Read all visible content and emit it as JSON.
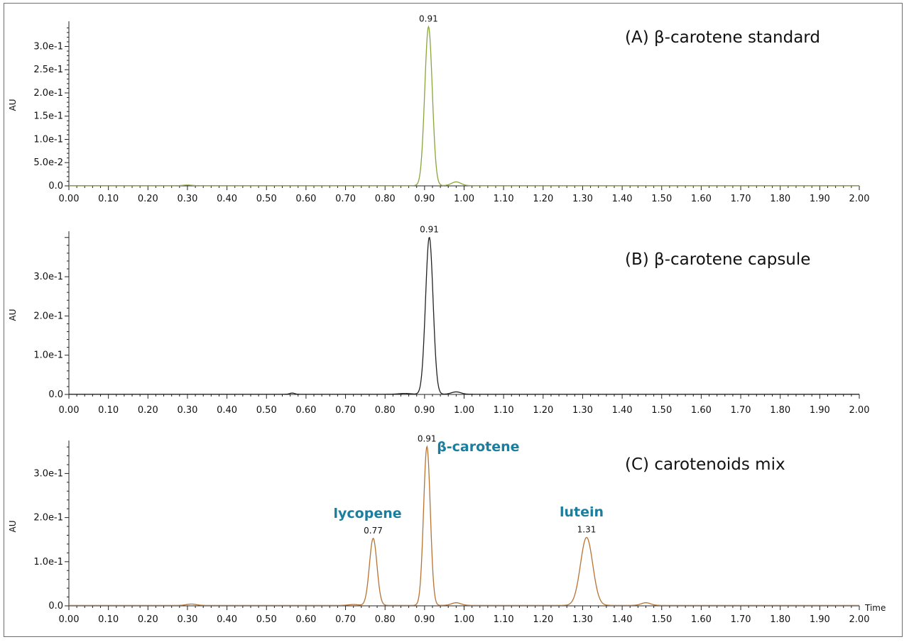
{
  "chart_data": [
    {
      "type": "line",
      "title": "(A) β-carotene standard",
      "ylabel": "AU",
      "xlabel": "",
      "xlim": [
        0.0,
        2.0
      ],
      "ylim": [
        0,
        0.345
      ],
      "x_ticks": [
        "0.00",
        "0.10",
        "0.20",
        "0.30",
        "0.40",
        "0.50",
        "0.60",
        "0.70",
        "0.80",
        "0.90",
        "1.00",
        "1.10",
        "1.20",
        "1.30",
        "1.40",
        "1.50",
        "1.60",
        "1.70",
        "1.80",
        "1.90",
        "2.00"
      ],
      "y_ticks": [
        {
          "value": 0.0,
          "label": "0.0"
        },
        {
          "value": 0.05,
          "label": "5.0e-2"
        },
        {
          "value": 0.1,
          "label": "1.0e-1"
        },
        {
          "value": 0.15,
          "label": "1.5e-1"
        },
        {
          "value": 0.2,
          "label": "2.0e-1"
        },
        {
          "value": 0.25,
          "label": "2.5e-1"
        },
        {
          "value": 0.3,
          "label": "3.0e-1"
        }
      ],
      "line_color": "#8aa53a",
      "baseline": 0.0005,
      "peaks": [
        {
          "rt": 0.91,
          "height": 0.342,
          "width": 0.0095,
          "label": "0.91"
        },
        {
          "rt": 0.98,
          "height": 0.008,
          "width": 0.012
        },
        {
          "rt": 0.3,
          "height": 0.0012,
          "width": 0.01
        }
      ],
      "annotations": []
    },
    {
      "type": "line",
      "title": "(B) β-carotene capsule",
      "ylabel": "AU",
      "xlabel": "",
      "xlim": [
        0.0,
        2.0
      ],
      "ylim": [
        0,
        0.405
      ],
      "x_ticks": [
        "0.00",
        "0.10",
        "0.20",
        "0.30",
        "0.40",
        "0.50",
        "0.60",
        "0.70",
        "0.80",
        "0.90",
        "1.00",
        "1.10",
        "1.20",
        "1.30",
        "1.40",
        "1.50",
        "1.60",
        "1.70",
        "1.80",
        "1.90",
        "2.00"
      ],
      "y_ticks": [
        {
          "value": 0.0,
          "label": "0.0"
        },
        {
          "value": 0.1,
          "label": "1.0e-1"
        },
        {
          "value": 0.2,
          "label": "2.0e-1"
        },
        {
          "value": 0.3,
          "label": "3.0e-1"
        }
      ],
      "line_color": "#222222",
      "baseline": 0.0005,
      "peaks": [
        {
          "rt": 0.912,
          "height": 0.4,
          "width": 0.0095,
          "label": "0.91"
        },
        {
          "rt": 0.98,
          "height": 0.006,
          "width": 0.012
        },
        {
          "rt": 0.565,
          "height": 0.003,
          "width": 0.006
        },
        {
          "rt": 0.85,
          "height": 0.002,
          "width": 0.015
        }
      ],
      "annotations": []
    },
    {
      "type": "line",
      "title": "(C) carotenoids mix",
      "ylabel": "AU",
      "xlabel": "Time",
      "xlim": [
        0.0,
        2.0
      ],
      "ylim": [
        0,
        0.365
      ],
      "x_ticks": [
        "0.00",
        "0.10",
        "0.20",
        "0.30",
        "0.40",
        "0.50",
        "0.60",
        "0.70",
        "0.80",
        "0.90",
        "1.00",
        "1.10",
        "1.20",
        "1.30",
        "1.40",
        "1.50",
        "1.60",
        "1.70",
        "1.80",
        "1.90",
        "2.00"
      ],
      "y_ticks": [
        {
          "value": 0.0,
          "label": "0.0"
        },
        {
          "value": 0.1,
          "label": "1.0e-1"
        },
        {
          "value": 0.2,
          "label": "2.0e-1"
        },
        {
          "value": 0.3,
          "label": "3.0e-1"
        }
      ],
      "line_color": "#b87333",
      "baseline": 0.001,
      "peaks": [
        {
          "rt": 0.77,
          "height": 0.152,
          "width": 0.0095,
          "label": "0.77"
        },
        {
          "rt": 0.906,
          "height": 0.36,
          "width": 0.0085,
          "label": "0.91"
        },
        {
          "rt": 1.31,
          "height": 0.154,
          "width": 0.0155,
          "label": "1.31"
        },
        {
          "rt": 0.98,
          "height": 0.006,
          "width": 0.012
        },
        {
          "rt": 1.46,
          "height": 0.006,
          "width": 0.012
        },
        {
          "rt": 0.31,
          "height": 0.003,
          "width": 0.012
        },
        {
          "rt": 0.72,
          "height": 0.002,
          "width": 0.012
        }
      ],
      "annotations": [
        {
          "text": "lycopene",
          "rt": 0.77
        },
        {
          "text": "β-carotene",
          "rt": 0.906
        },
        {
          "text": "lutein",
          "rt": 1.31
        }
      ]
    }
  ]
}
